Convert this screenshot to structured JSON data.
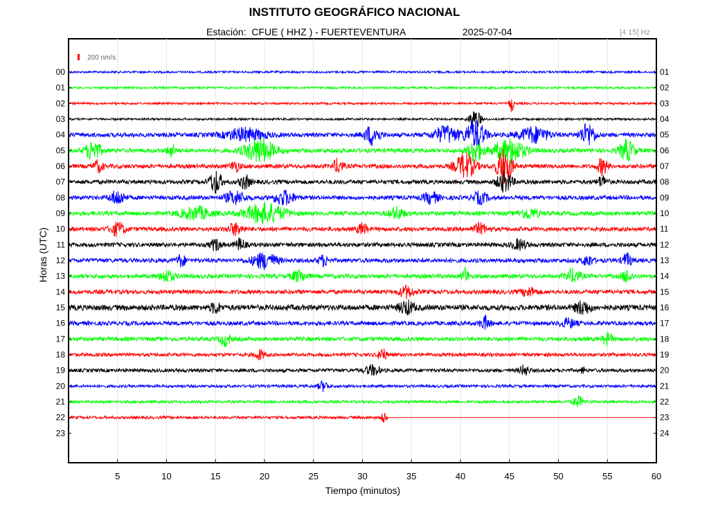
{
  "header": {
    "institution": "INSTITUTO GEOGRÁFICO NACIONAL",
    "station_line": "Estación:  CFUE ( HHZ ) - FUERTEVENTURA",
    "date": "2025-07-04",
    "filter": "[4 15] Hz"
  },
  "chart_data": {
    "type": "line",
    "title": "INSTITUTO GEOGRÁFICO NACIONAL",
    "subtitle": "Estación:  CFUE ( HHZ ) - FUERTEVENTURA",
    "xlabel": "Tiempo (minutos)",
    "ylabel": "Horas (UTC)",
    "xlim": [
      0,
      60
    ],
    "x_ticks": [
      5,
      10,
      15,
      20,
      25,
      30,
      35,
      40,
      45,
      50,
      55,
      60
    ],
    "y_ticks_left": [
      "00",
      "01",
      "02",
      "03",
      "04",
      "05",
      "06",
      "07",
      "08",
      "09",
      "10",
      "11",
      "12",
      "13",
      "14",
      "15",
      "16",
      "17",
      "18",
      "19",
      "20",
      "21",
      "22",
      "23"
    ],
    "y_ticks_right": [
      "01",
      "02",
      "03",
      "04",
      "05",
      "06",
      "07",
      "08",
      "09",
      "10",
      "11",
      "12",
      "13",
      "14",
      "15",
      "16",
      "17",
      "18",
      "19",
      "20",
      "21",
      "22",
      "23",
      "24"
    ],
    "scale_bar_label": "200 nm/s",
    "grid": "vertical",
    "color_cycle": [
      "#0000ff",
      "#00ff00",
      "#ff0000",
      "#000000"
    ],
    "series": [
      {
        "hour": "00",
        "color": "#0000ff",
        "noise": 1.5,
        "end_minute": 60,
        "events": []
      },
      {
        "hour": "01",
        "color": "#00ff00",
        "noise": 1.5,
        "end_minute": 60,
        "events": []
      },
      {
        "hour": "02",
        "color": "#ff0000",
        "noise": 1.5,
        "end_minute": 60,
        "events": [
          {
            "t": 45.2,
            "amp": 13,
            "dur": 0.4
          }
        ]
      },
      {
        "hour": "03",
        "color": "#000000",
        "noise": 1.5,
        "end_minute": 60,
        "events": [
          {
            "t": 41.5,
            "amp": 13,
            "dur": 1.2
          }
        ]
      },
      {
        "hour": "04",
        "color": "#0000ff",
        "noise": 3,
        "end_minute": 60,
        "events": [
          {
            "t": 18,
            "amp": 9,
            "dur": 4
          },
          {
            "t": 31,
            "amp": 14,
            "dur": 1.5
          },
          {
            "t": 38.5,
            "amp": 12,
            "dur": 2.5
          },
          {
            "t": 41.5,
            "amp": 20,
            "dur": 2
          },
          {
            "t": 47.5,
            "amp": 11,
            "dur": 3
          },
          {
            "t": 53,
            "amp": 16,
            "dur": 1.5
          }
        ]
      },
      {
        "hour": "05",
        "color": "#00ff00",
        "noise": 3,
        "end_minute": 60,
        "events": [
          {
            "t": 2.5,
            "amp": 14,
            "dur": 1.5
          },
          {
            "t": 10.5,
            "amp": 9,
            "dur": 0.8
          },
          {
            "t": 19.5,
            "amp": 17,
            "dur": 3
          },
          {
            "t": 41.5,
            "amp": 16,
            "dur": 1.5
          },
          {
            "t": 45,
            "amp": 18,
            "dur": 3
          },
          {
            "t": 57,
            "amp": 15,
            "dur": 1.5
          }
        ]
      },
      {
        "hour": "06",
        "color": "#ff0000",
        "noise": 3,
        "end_minute": 60,
        "events": [
          {
            "t": 3,
            "amp": 8,
            "dur": 1
          },
          {
            "t": 17,
            "amp": 7,
            "dur": 1
          },
          {
            "t": 27.5,
            "amp": 10,
            "dur": 1
          },
          {
            "t": 40.5,
            "amp": 18,
            "dur": 2
          },
          {
            "t": 44.5,
            "amp": 26,
            "dur": 1.5
          },
          {
            "t": 54.5,
            "amp": 12,
            "dur": 1
          }
        ]
      },
      {
        "hour": "07",
        "color": "#000000",
        "noise": 3,
        "end_minute": 60,
        "events": [
          {
            "t": 15,
            "amp": 17,
            "dur": 1.2
          },
          {
            "t": 18,
            "amp": 10,
            "dur": 1
          },
          {
            "t": 44.5,
            "amp": 14,
            "dur": 1.5
          },
          {
            "t": 54.5,
            "amp": 8,
            "dur": 1
          }
        ]
      },
      {
        "hour": "08",
        "color": "#0000ff",
        "noise": 3,
        "end_minute": 60,
        "events": [
          {
            "t": 5,
            "amp": 10,
            "dur": 1.5
          },
          {
            "t": 17,
            "amp": 9,
            "dur": 2
          },
          {
            "t": 22,
            "amp": 10,
            "dur": 2
          },
          {
            "t": 37,
            "amp": 8,
            "dur": 1.5
          },
          {
            "t": 42,
            "amp": 8,
            "dur": 1.5
          }
        ]
      },
      {
        "hour": "09",
        "color": "#00ff00",
        "noise": 3,
        "end_minute": 60,
        "events": [
          {
            "t": 13,
            "amp": 9,
            "dur": 3
          },
          {
            "t": 20,
            "amp": 14,
            "dur": 4
          },
          {
            "t": 33.5,
            "amp": 8,
            "dur": 1.5
          },
          {
            "t": 47,
            "amp": 7,
            "dur": 2
          }
        ]
      },
      {
        "hour": "10",
        "color": "#ff0000",
        "noise": 3,
        "end_minute": 60,
        "events": [
          {
            "t": 5,
            "amp": 9,
            "dur": 1.5
          },
          {
            "t": 17,
            "amp": 8,
            "dur": 1.5
          },
          {
            "t": 30,
            "amp": 8,
            "dur": 1
          },
          {
            "t": 42,
            "amp": 7,
            "dur": 1.5
          }
        ]
      },
      {
        "hour": "11",
        "color": "#000000",
        "noise": 3,
        "end_minute": 60,
        "events": [
          {
            "t": 15,
            "amp": 8,
            "dur": 1
          },
          {
            "t": 17.5,
            "amp": 8,
            "dur": 1
          },
          {
            "t": 46,
            "amp": 7,
            "dur": 1.5
          }
        ]
      },
      {
        "hour": "12",
        "color": "#0000ff",
        "noise": 3,
        "end_minute": 60,
        "events": [
          {
            "t": 11.5,
            "amp": 9,
            "dur": 0.8
          },
          {
            "t": 20,
            "amp": 11,
            "dur": 2.5
          },
          {
            "t": 26,
            "amp": 7,
            "dur": 1
          },
          {
            "t": 53,
            "amp": 8,
            "dur": 1
          },
          {
            "t": 57,
            "amp": 9,
            "dur": 1
          }
        ]
      },
      {
        "hour": "13",
        "color": "#00ff00",
        "noise": 3,
        "end_minute": 60,
        "events": [
          {
            "t": 10,
            "amp": 8,
            "dur": 1.5
          },
          {
            "t": 23.5,
            "amp": 8,
            "dur": 1.5
          },
          {
            "t": 40.5,
            "amp": 12,
            "dur": 0.6
          },
          {
            "t": 51.5,
            "amp": 9,
            "dur": 1.5
          },
          {
            "t": 57,
            "amp": 9,
            "dur": 1
          }
        ]
      },
      {
        "hour": "14",
        "color": "#ff0000",
        "noise": 3,
        "end_minute": 60,
        "events": [
          {
            "t": 34.5,
            "amp": 8,
            "dur": 1.5
          },
          {
            "t": 47,
            "amp": 6,
            "dur": 1.5
          }
        ]
      },
      {
        "hour": "15",
        "color": "#000000",
        "noise": 4,
        "end_minute": 60,
        "events": [
          {
            "t": 15,
            "amp": 7,
            "dur": 1
          },
          {
            "t": 34.5,
            "amp": 9,
            "dur": 1.5
          },
          {
            "t": 52.5,
            "amp": 9,
            "dur": 1.5
          }
        ]
      },
      {
        "hour": "16",
        "color": "#0000ff",
        "noise": 3,
        "end_minute": 60,
        "events": [
          {
            "t": 42.5,
            "amp": 9,
            "dur": 1
          },
          {
            "t": 51,
            "amp": 6,
            "dur": 1.5
          }
        ]
      },
      {
        "hour": "17",
        "color": "#00ff00",
        "noise": 3,
        "end_minute": 60,
        "events": [
          {
            "t": 16,
            "amp": 9,
            "dur": 1
          },
          {
            "t": 55,
            "amp": 8,
            "dur": 1
          }
        ]
      },
      {
        "hour": "18",
        "color": "#ff0000",
        "noise": 2.5,
        "end_minute": 60,
        "events": [
          {
            "t": 19.5,
            "amp": 7,
            "dur": 1
          },
          {
            "t": 32,
            "amp": 10,
            "dur": 0.8
          }
        ]
      },
      {
        "hour": "19",
        "color": "#000000",
        "noise": 2.5,
        "end_minute": 60,
        "events": [
          {
            "t": 31,
            "amp": 7,
            "dur": 1.5
          },
          {
            "t": 46.5,
            "amp": 7,
            "dur": 1
          },
          {
            "t": 52.5,
            "amp": 7,
            "dur": 0.3
          }
        ]
      },
      {
        "hour": "20",
        "color": "#0000ff",
        "noise": 2,
        "end_minute": 60,
        "events": [
          {
            "t": 26,
            "amp": 7,
            "dur": 1
          }
        ]
      },
      {
        "hour": "21",
        "color": "#00ff00",
        "noise": 2,
        "end_minute": 60,
        "events": [
          {
            "t": 52,
            "amp": 8,
            "dur": 1
          }
        ]
      },
      {
        "hour": "22",
        "color": "#ff0000",
        "noise": 2,
        "end_minute": 32.6,
        "events": [
          {
            "t": 32.2,
            "amp": 10,
            "dur": 0.4
          }
        ]
      },
      {
        "hour": "23",
        "color": "#000000",
        "noise": 0,
        "end_minute": 0,
        "events": []
      }
    ]
  }
}
